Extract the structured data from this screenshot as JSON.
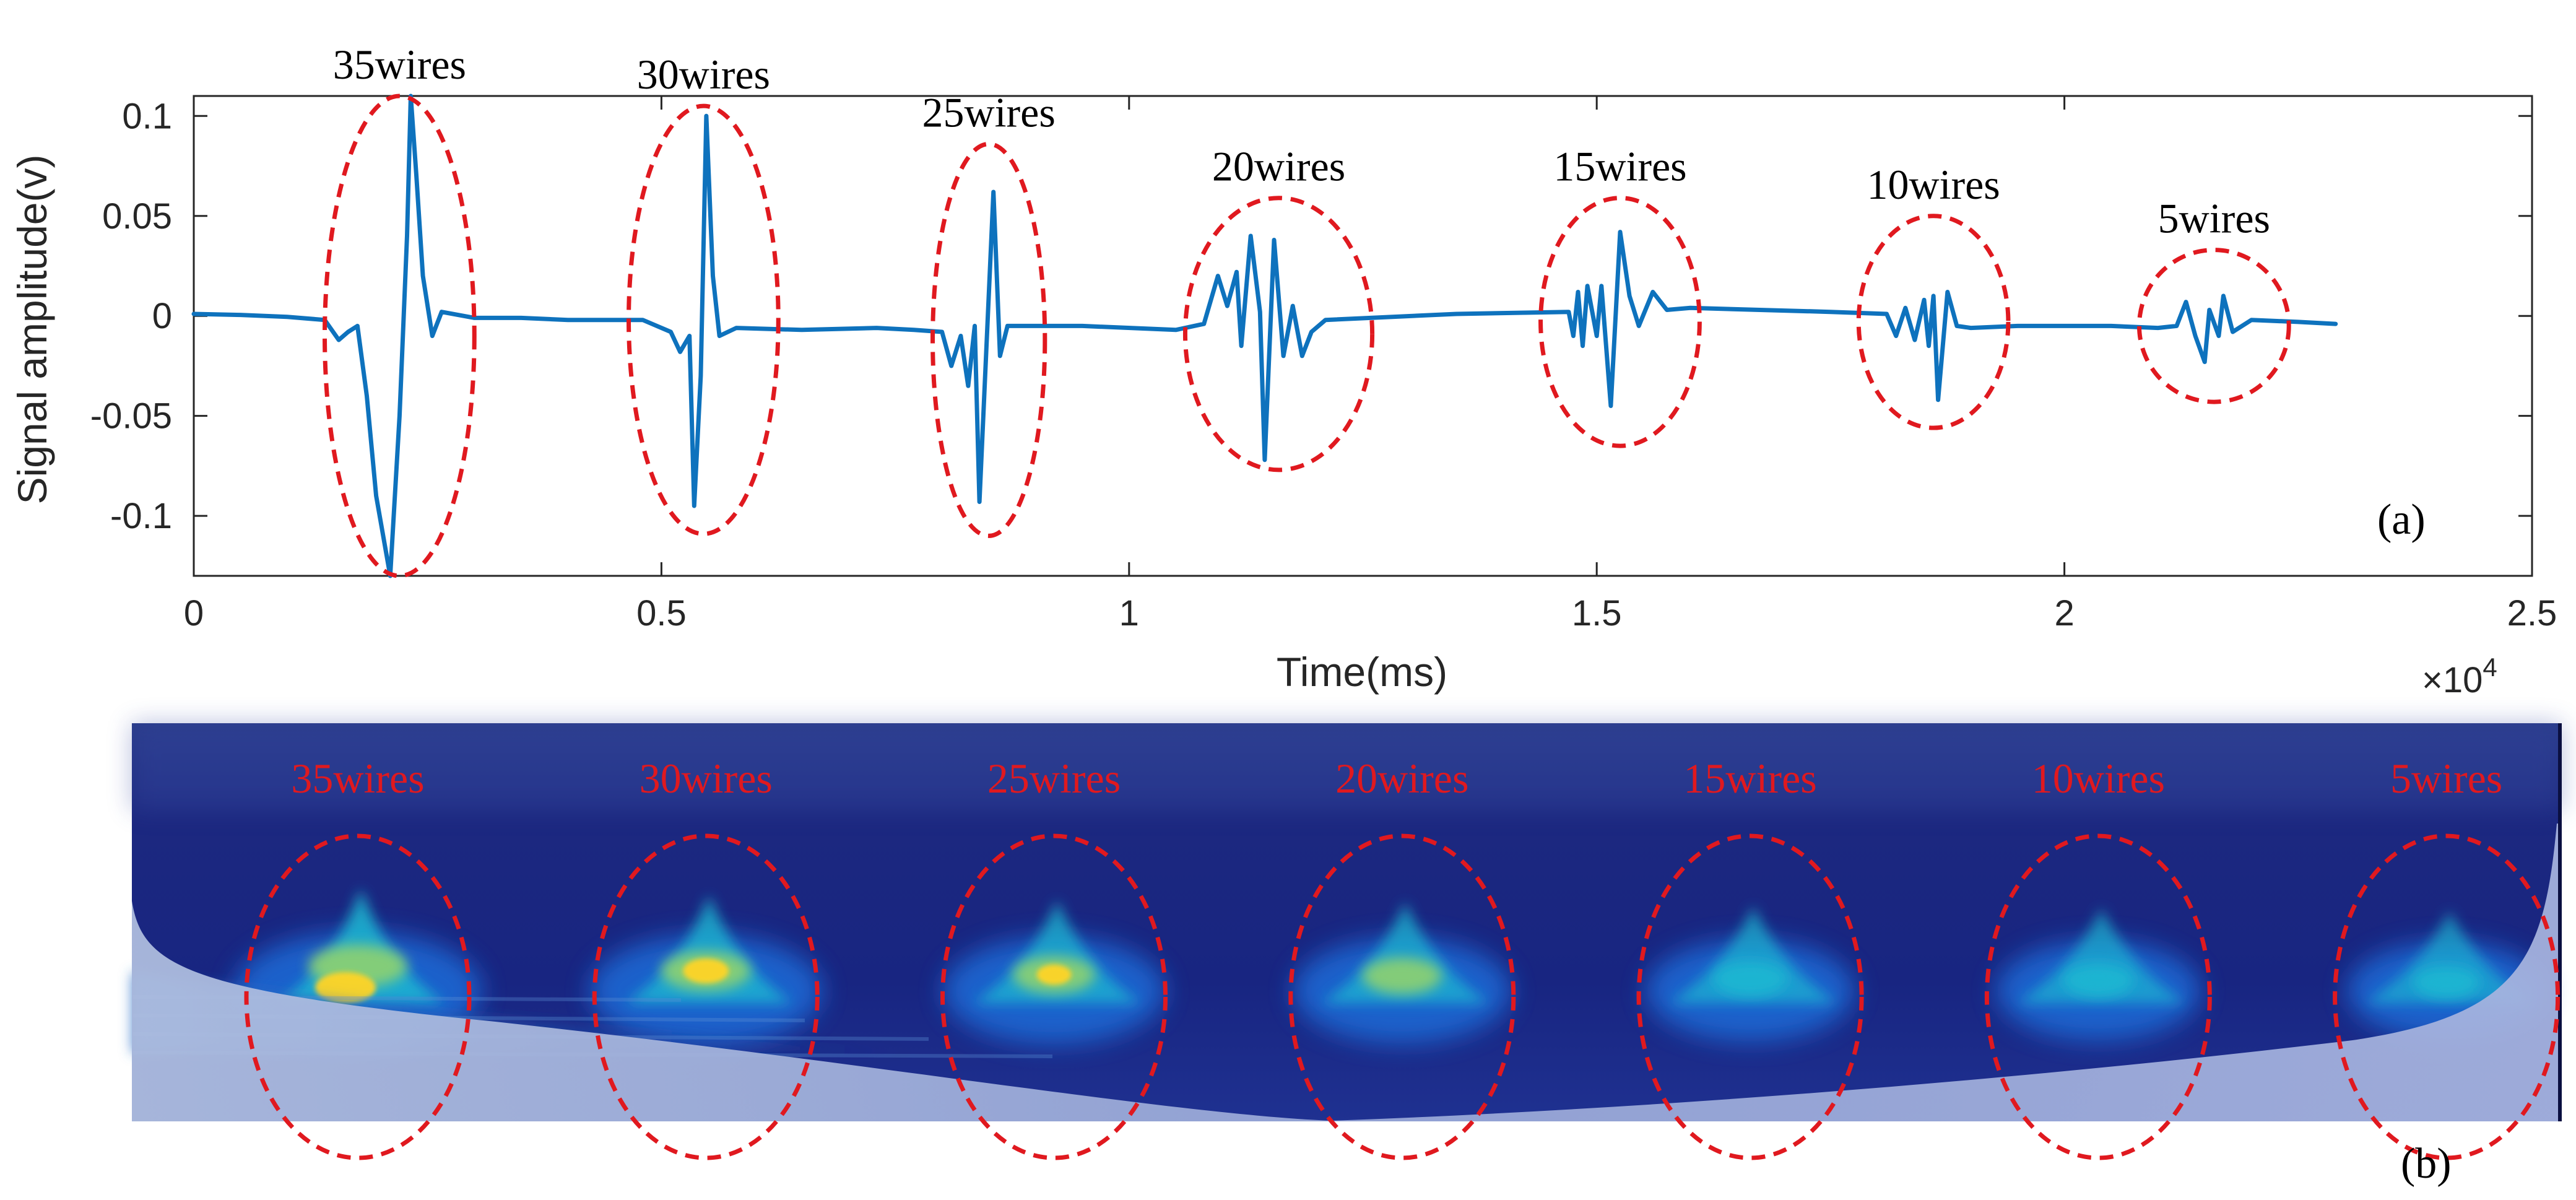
{
  "chart_data": [
    {
      "panel": "(a)",
      "type": "line",
      "xlabel": "Time(ms)",
      "ylabel": "Signal amplitude(v)",
      "x_multiplier": "×10",
      "x_multiplier_exp": "4",
      "xlim": [
        0,
        25000
      ],
      "ylim": [
        -0.13,
        0.11
      ],
      "xticks": [
        0,
        5000,
        10000,
        15000,
        20000,
        25000
      ],
      "xtick_labels": [
        "0",
        "0.5",
        "1",
        "1.5",
        "2",
        "2.5"
      ],
      "yticks": [
        0.1,
        0.05,
        0,
        -0.05,
        -0.1
      ],
      "ytick_labels": [
        "0.1",
        "0.05",
        "0",
        "-0.05",
        "-0.1"
      ],
      "series": [
        {
          "name": "signal",
          "color": "#0e72bd",
          "points": [
            [
              0,
              0.001
            ],
            [
              500,
              0.0005
            ],
            [
              1000,
              -0.0005
            ],
            [
              1400,
              -0.002
            ],
            [
              1550,
              -0.012
            ],
            [
              1650,
              -0.008
            ],
            [
              1750,
              -0.005
            ],
            [
              1850,
              -0.04
            ],
            [
              1950,
              -0.09
            ],
            [
              2100,
              -0.13
            ],
            [
              2200,
              -0.05
            ],
            [
              2280,
              0.04
            ],
            [
              2320,
              0.11
            ],
            [
              2380,
              0.07
            ],
            [
              2450,
              0.02
            ],
            [
              2550,
              -0.01
            ],
            [
              2650,
              0.002
            ],
            [
              3000,
              -0.001
            ],
            [
              3500,
              -0.001
            ],
            [
              4000,
              -0.002
            ],
            [
              4800,
              -0.002
            ],
            [
              5100,
              -0.008
            ],
            [
              5200,
              -0.018
            ],
            [
              5300,
              -0.01
            ],
            [
              5350,
              -0.095
            ],
            [
              5420,
              -0.03
            ],
            [
              5480,
              0.1
            ],
            [
              5550,
              0.02
            ],
            [
              5620,
              -0.01
            ],
            [
              5800,
              -0.006
            ],
            [
              6500,
              -0.007
            ],
            [
              7300,
              -0.006
            ],
            [
              7700,
              -0.007
            ],
            [
              8000,
              -0.008
            ],
            [
              8100,
              -0.025
            ],
            [
              8200,
              -0.01
            ],
            [
              8280,
              -0.035
            ],
            [
              8350,
              -0.005
            ],
            [
              8400,
              -0.093
            ],
            [
              8480,
              -0.01
            ],
            [
              8550,
              0.062
            ],
            [
              8620,
              -0.02
            ],
            [
              8700,
              -0.005
            ],
            [
              9500,
              -0.005
            ],
            [
              10500,
              -0.007
            ],
            [
              10800,
              -0.004
            ],
            [
              10950,
              0.02
            ],
            [
              11050,
              0.005
            ],
            [
              11150,
              0.022
            ],
            [
              11200,
              -0.015
            ],
            [
              11300,
              0.04
            ],
            [
              11400,
              0.002
            ],
            [
              11450,
              -0.072
            ],
            [
              11550,
              0.038
            ],
            [
              11650,
              -0.02
            ],
            [
              11750,
              0.005
            ],
            [
              11850,
              -0.02
            ],
            [
              11950,
              -0.008
            ],
            [
              12100,
              -0.002
            ],
            [
              13500,
              0.001
            ],
            [
              14700,
              0.002
            ],
            [
              14750,
              -0.01
            ],
            [
              14800,
              0.012
            ],
            [
              14850,
              -0.015
            ],
            [
              14900,
              0.015
            ],
            [
              15000,
              -0.01
            ],
            [
              15050,
              0.015
            ],
            [
              15150,
              -0.045
            ],
            [
              15250,
              0.042
            ],
            [
              15350,
              0.01
            ],
            [
              15450,
              -0.005
            ],
            [
              15600,
              0.012
            ],
            [
              15750,
              0.003
            ],
            [
              16000,
              0.004
            ],
            [
              17500,
              0.002
            ],
            [
              18100,
              0.001
            ],
            [
              18200,
              -0.01
            ],
            [
              18300,
              0.004
            ],
            [
              18400,
              -0.012
            ],
            [
              18500,
              0.008
            ],
            [
              18550,
              -0.015
            ],
            [
              18600,
              0.01
            ],
            [
              18650,
              -0.042
            ],
            [
              18750,
              0.012
            ],
            [
              18850,
              -0.005
            ],
            [
              19000,
              -0.006
            ],
            [
              19500,
              -0.005
            ],
            [
              20500,
              -0.005
            ],
            [
              21000,
              -0.006
            ],
            [
              21200,
              -0.005
            ],
            [
              21300,
              0.007
            ],
            [
              21400,
              -0.01
            ],
            [
              21500,
              -0.023
            ],
            [
              21550,
              0.003
            ],
            [
              21650,
              -0.01
            ],
            [
              21700,
              0.01
            ],
            [
              21800,
              -0.008
            ],
            [
              22000,
              -0.002
            ],
            [
              22500,
              -0.003
            ],
            [
              22900,
              -0.004
            ]
          ]
        }
      ],
      "annotations": [
        {
          "label": "35wires",
          "x": 2200,
          "y": -0.01,
          "rx": 800,
          "ry": 0.12
        },
        {
          "label": "30wires",
          "x": 5450,
          "y": -0.002,
          "rx": 800,
          "ry": 0.107
        },
        {
          "label": "25wires",
          "x": 8500,
          "y": -0.012,
          "rx": 600,
          "ry": 0.098
        },
        {
          "label": "20wires",
          "x": 11600,
          "y": -0.009,
          "rx": 1000,
          "ry": 0.068
        },
        {
          "label": "15wires",
          "x": 15250,
          "y": -0.003,
          "rx": 850,
          "ry": 0.062
        },
        {
          "label": "10wires",
          "x": 18600,
          "y": -0.003,
          "rx": 800,
          "ry": 0.053
        },
        {
          "label": "5wires",
          "x": 21600,
          "y": -0.005,
          "rx": 800,
          "ry": 0.038
        }
      ]
    },
    {
      "panel": "(b)",
      "type": "heatmap",
      "colormap": [
        "#1f2a8f",
        "#1e6cd8",
        "#1fb7d2",
        "#8fd16f",
        "#ffd427"
      ],
      "blobs": [
        {
          "label": "35wires",
          "intensity": 1.0
        },
        {
          "label": "30wires",
          "intensity": 0.8
        },
        {
          "label": "25wires",
          "intensity": 0.65
        },
        {
          "label": "20wires",
          "intensity": 0.6
        },
        {
          "label": "15wires",
          "intensity": 0.48
        },
        {
          "label": "10wires",
          "intensity": 0.42
        },
        {
          "label": "5wires",
          "intensity": 0.34
        }
      ]
    }
  ],
  "accent": "#e0191f"
}
